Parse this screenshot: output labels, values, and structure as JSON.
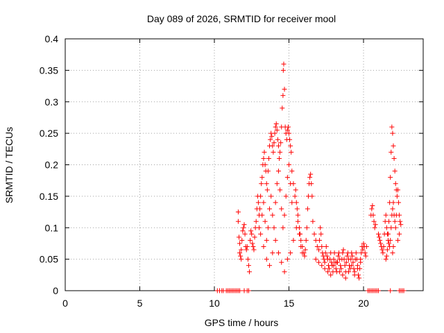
{
  "chart_data": {
    "type": "scatter",
    "title": "Day 089 of 2026, SRMTID for receiver mool",
    "xlabel": "GPS time / hours",
    "ylabel": "SRMTID / TECUs",
    "xlim": [
      0,
      24
    ],
    "ylim": [
      0,
      0.4
    ],
    "xticks": [
      0,
      5,
      10,
      15,
      20
    ],
    "yticks": [
      0,
      0.05,
      0.1,
      0.15,
      0.2,
      0.25,
      0.3,
      0.35,
      0.4
    ],
    "xtick_labels": [
      "0",
      "5",
      "10",
      "15",
      "20"
    ],
    "ytick_labels": [
      "0",
      "0.05",
      "0.1",
      "0.15",
      "0.2",
      "0.25",
      "0.3",
      "0.35",
      "0.4"
    ],
    "grid": true,
    "marker": "+",
    "color": "#ff0000",
    "series": [
      {
        "name": "SRMTID",
        "points": [
          [
            10.2,
            0.0
          ],
          [
            10.35,
            0.0
          ],
          [
            10.5,
            0.0
          ],
          [
            10.6,
            0.0
          ],
          [
            10.8,
            0.0
          ],
          [
            10.9,
            0.0
          ],
          [
            11.0,
            0.0
          ],
          [
            11.1,
            0.0
          ],
          [
            11.2,
            0.0
          ],
          [
            11.3,
            0.0
          ],
          [
            11.4,
            0.0
          ],
          [
            11.5,
            0.0
          ],
          [
            11.6,
            0.0
          ],
          [
            11.7,
            0.0
          ],
          [
            12.0,
            0.0
          ],
          [
            12.2,
            0.0
          ],
          [
            12.3,
            0.0
          ],
          [
            11.6,
            0.125
          ],
          [
            11.6,
            0.11
          ],
          [
            11.65,
            0.085
          ],
          [
            11.7,
            0.075
          ],
          [
            11.7,
            0.06
          ],
          [
            11.75,
            0.055
          ],
          [
            11.8,
            0.05
          ],
          [
            11.8,
            0.065
          ],
          [
            11.85,
            0.08
          ],
          [
            11.9,
            0.095
          ],
          [
            11.95,
            0.1
          ],
          [
            12.0,
            0.105
          ],
          [
            12.05,
            0.09
          ],
          [
            12.1,
            0.07
          ],
          [
            12.15,
            0.065
          ],
          [
            12.2,
            0.07
          ],
          [
            12.25,
            0.05
          ],
          [
            12.3,
            0.04
          ],
          [
            12.35,
            0.03
          ],
          [
            12.4,
            0.08
          ],
          [
            12.45,
            0.095
          ],
          [
            12.5,
            0.09
          ],
          [
            12.55,
            0.075
          ],
          [
            12.6,
            0.07
          ],
          [
            12.65,
            0.065
          ],
          [
            12.7,
            0.085
          ],
          [
            12.75,
            0.1
          ],
          [
            12.8,
            0.11
          ],
          [
            12.85,
            0.13
          ],
          [
            12.9,
            0.15
          ],
          [
            12.95,
            0.14
          ],
          [
            13.0,
            0.12
          ],
          [
            13.05,
            0.13
          ],
          [
            13.1,
            0.15
          ],
          [
            13.15,
            0.17
          ],
          [
            13.2,
            0.18
          ],
          [
            13.25,
            0.2
          ],
          [
            13.3,
            0.21
          ],
          [
            13.35,
            0.22
          ],
          [
            13.4,
            0.2
          ],
          [
            13.45,
            0.19
          ],
          [
            13.5,
            0.17
          ],
          [
            13.55,
            0.16
          ],
          [
            13.6,
            0.19
          ],
          [
            13.65,
            0.21
          ],
          [
            13.7,
            0.23
          ],
          [
            13.75,
            0.24
          ],
          [
            13.8,
            0.25
          ],
          [
            13.85,
            0.245
          ],
          [
            13.9,
            0.23
          ],
          [
            13.95,
            0.22
          ],
          [
            14.0,
            0.235
          ],
          [
            14.05,
            0.25
          ],
          [
            14.1,
            0.26
          ],
          [
            14.15,
            0.265
          ],
          [
            14.2,
            0.255
          ],
          [
            14.25,
            0.24
          ],
          [
            14.3,
            0.23
          ],
          [
            14.35,
            0.21
          ],
          [
            14.4,
            0.22
          ],
          [
            14.45,
            0.235
          ],
          [
            14.5,
            0.26
          ],
          [
            14.55,
            0.29
          ],
          [
            14.6,
            0.31
          ],
          [
            14.62,
            0.35
          ],
          [
            14.65,
            0.36
          ],
          [
            14.7,
            0.32
          ],
          [
            14.75,
            0.26
          ],
          [
            14.8,
            0.25
          ],
          [
            14.85,
            0.24
          ],
          [
            14.9,
            0.255
          ],
          [
            14.95,
            0.26
          ],
          [
            15.0,
            0.25
          ],
          [
            15.05,
            0.24
          ],
          [
            15.1,
            0.23
          ],
          [
            15.15,
            0.22
          ],
          [
            13.0,
            0.1
          ],
          [
            13.1,
            0.09
          ],
          [
            13.2,
            0.12
          ],
          [
            13.3,
            0.14
          ],
          [
            13.4,
            0.11
          ],
          [
            13.5,
            0.08
          ],
          [
            13.6,
            0.1
          ],
          [
            13.7,
            0.13
          ],
          [
            13.8,
            0.15
          ],
          [
            13.9,
            0.12
          ],
          [
            14.0,
            0.1
          ],
          [
            14.1,
            0.14
          ],
          [
            14.2,
            0.17
          ],
          [
            14.3,
            0.19
          ],
          [
            14.4,
            0.16
          ],
          [
            14.5,
            0.13
          ],
          [
            14.6,
            0.1
          ],
          [
            14.7,
            0.12
          ],
          [
            14.8,
            0.15
          ],
          [
            14.9,
            0.18
          ],
          [
            15.0,
            0.2
          ],
          [
            15.1,
            0.17
          ],
          [
            15.2,
            0.14
          ],
          [
            13.3,
            0.07
          ],
          [
            13.5,
            0.05
          ],
          [
            13.7,
            0.04
          ],
          [
            13.9,
            0.06
          ],
          [
            14.1,
            0.08
          ],
          [
            14.3,
            0.06
          ],
          [
            14.5,
            0.045
          ],
          [
            14.7,
            0.03
          ],
          [
            14.9,
            0.05
          ],
          [
            15.1,
            0.06
          ],
          [
            15.3,
            0.08
          ],
          [
            15.5,
            0.1
          ],
          [
            15.6,
            0.12
          ],
          [
            15.7,
            0.09
          ],
          [
            15.8,
            0.07
          ],
          [
            15.9,
            0.06
          ],
          [
            15.2,
            0.19
          ],
          [
            15.3,
            0.17
          ],
          [
            15.4,
            0.15
          ],
          [
            15.45,
            0.16
          ],
          [
            15.5,
            0.14
          ],
          [
            15.55,
            0.13
          ],
          [
            15.6,
            0.11
          ],
          [
            15.7,
            0.1
          ],
          [
            15.75,
            0.09
          ],
          [
            15.8,
            0.08
          ],
          [
            15.9,
            0.07
          ],
          [
            16.0,
            0.06
          ],
          [
            16.05,
            0.055
          ],
          [
            16.1,
            0.065
          ],
          [
            16.15,
            0.08
          ],
          [
            16.2,
            0.1
          ],
          [
            16.25,
            0.13
          ],
          [
            16.3,
            0.15
          ],
          [
            16.35,
            0.17
          ],
          [
            16.4,
            0.18
          ],
          [
            16.45,
            0.185
          ],
          [
            16.5,
            0.17
          ],
          [
            16.55,
            0.15
          ],
          [
            16.6,
            0.11
          ],
          [
            16.7,
            0.09
          ],
          [
            16.8,
            0.08
          ],
          [
            16.9,
            0.07
          ],
          [
            17.0,
            0.065
          ],
          [
            17.05,
            0.08
          ],
          [
            17.1,
            0.1
          ],
          [
            17.15,
            0.09
          ],
          [
            17.2,
            0.07
          ],
          [
            17.25,
            0.06
          ],
          [
            17.3,
            0.055
          ],
          [
            17.35,
            0.05
          ],
          [
            17.4,
            0.045
          ],
          [
            17.45,
            0.06
          ],
          [
            17.5,
            0.07
          ],
          [
            17.55,
            0.055
          ],
          [
            17.6,
            0.05
          ],
          [
            17.65,
            0.04
          ],
          [
            17.7,
            0.035
          ],
          [
            17.75,
            0.05
          ],
          [
            17.8,
            0.06
          ],
          [
            17.85,
            0.045
          ],
          [
            17.9,
            0.04
          ],
          [
            17.95,
            0.03
          ],
          [
            18.0,
            0.05
          ],
          [
            18.05,
            0.06
          ],
          [
            18.1,
            0.045
          ],
          [
            18.15,
            0.035
          ],
          [
            18.2,
            0.03
          ],
          [
            18.25,
            0.045
          ],
          [
            18.3,
            0.055
          ],
          [
            18.35,
            0.06
          ],
          [
            18.4,
            0.05
          ],
          [
            18.45,
            0.04
          ],
          [
            18.5,
            0.035
          ],
          [
            18.55,
            0.05
          ],
          [
            18.6,
            0.06
          ],
          [
            18.65,
            0.065
          ],
          [
            18.7,
            0.05
          ],
          [
            18.75,
            0.04
          ],
          [
            18.8,
            0.03
          ],
          [
            18.85,
            0.045
          ],
          [
            18.9,
            0.055
          ],
          [
            18.95,
            0.06
          ],
          [
            19.0,
            0.05
          ],
          [
            19.05,
            0.04
          ],
          [
            19.1,
            0.035
          ],
          [
            19.15,
            0.05
          ],
          [
            19.2,
            0.06
          ],
          [
            19.25,
            0.055
          ],
          [
            19.3,
            0.045
          ],
          [
            19.35,
            0.035
          ],
          [
            19.4,
            0.03
          ],
          [
            19.45,
            0.05
          ],
          [
            19.5,
            0.06
          ],
          [
            19.55,
            0.05
          ],
          [
            19.6,
            0.04
          ],
          [
            19.65,
            0.025
          ],
          [
            19.7,
            0.02
          ],
          [
            19.75,
            0.035
          ],
          [
            19.8,
            0.05
          ],
          [
            19.85,
            0.06
          ],
          [
            19.9,
            0.07
          ],
          [
            19.95,
            0.065
          ],
          [
            20.0,
            0.075
          ],
          [
            20.05,
            0.07
          ],
          [
            20.1,
            0.06
          ],
          [
            20.15,
            0.055
          ],
          [
            20.2,
            0.07
          ],
          [
            16.8,
            0.05
          ],
          [
            17.0,
            0.045
          ],
          [
            17.2,
            0.04
          ],
          [
            17.4,
            0.035
          ],
          [
            17.6,
            0.03
          ],
          [
            17.8,
            0.025
          ],
          [
            18.0,
            0.04
          ],
          [
            18.2,
            0.045
          ],
          [
            18.4,
            0.03
          ],
          [
            18.6,
            0.025
          ],
          [
            18.8,
            0.02
          ],
          [
            19.0,
            0.03
          ],
          [
            19.2,
            0.04
          ],
          [
            19.4,
            0.025
          ],
          [
            19.6,
            0.035
          ],
          [
            19.8,
            0.045
          ],
          [
            20.3,
            0.0
          ],
          [
            20.4,
            0.0
          ],
          [
            20.5,
            0.0
          ],
          [
            20.6,
            0.0
          ],
          [
            20.7,
            0.0
          ],
          [
            20.8,
            0.0
          ],
          [
            20.9,
            0.0
          ],
          [
            21.0,
            0.0
          ],
          [
            21.8,
            0.0
          ],
          [
            22.4,
            0.0
          ],
          [
            22.5,
            0.0
          ],
          [
            22.6,
            0.0
          ],
          [
            22.7,
            0.0
          ],
          [
            20.5,
            0.12
          ],
          [
            20.55,
            0.13
          ],
          [
            20.6,
            0.135
          ],
          [
            20.65,
            0.12
          ],
          [
            20.7,
            0.11
          ],
          [
            20.75,
            0.1
          ],
          [
            20.8,
            0.105
          ],
          [
            21.0,
            0.09
          ],
          [
            21.05,
            0.085
          ],
          [
            21.1,
            0.08
          ],
          [
            21.15,
            0.075
          ],
          [
            21.2,
            0.07
          ],
          [
            21.25,
            0.065
          ],
          [
            21.3,
            0.06
          ],
          [
            21.35,
            0.07
          ],
          [
            21.4,
            0.09
          ],
          [
            21.45,
            0.11
          ],
          [
            21.5,
            0.12
          ],
          [
            21.55,
            0.1
          ],
          [
            21.6,
            0.09
          ],
          [
            21.65,
            0.08
          ],
          [
            21.7,
            0.075
          ],
          [
            21.75,
            0.07
          ],
          [
            21.8,
            0.08
          ],
          [
            21.85,
            0.1
          ],
          [
            21.9,
            0.12
          ],
          [
            21.95,
            0.13
          ],
          [
            22.0,
            0.14
          ],
          [
            22.05,
            0.12
          ],
          [
            22.1,
            0.11
          ],
          [
            22.15,
            0.1
          ],
          [
            22.2,
            0.12
          ],
          [
            22.25,
            0.15
          ],
          [
            22.3,
            0.16
          ],
          [
            22.35,
            0.14
          ],
          [
            22.4,
            0.12
          ],
          [
            22.45,
            0.11
          ],
          [
            22.5,
            0.105
          ],
          [
            21.9,
            0.26
          ],
          [
            21.95,
            0.25
          ],
          [
            22.0,
            0.23
          ],
          [
            22.05,
            0.21
          ],
          [
            22.1,
            0.19
          ],
          [
            22.15,
            0.17
          ],
          [
            22.2,
            0.16
          ],
          [
            21.85,
            0.22
          ],
          [
            21.8,
            0.18
          ],
          [
            21.75,
            0.14
          ],
          [
            21.7,
            0.11
          ],
          [
            21.65,
            0.09
          ],
          [
            21.6,
            0.065
          ],
          [
            21.55,
            0.055
          ],
          [
            21.5,
            0.05
          ],
          [
            21.95,
            0.06
          ],
          [
            22.0,
            0.07
          ],
          [
            22.3,
            0.08
          ],
          [
            22.4,
            0.09
          ]
        ]
      }
    ]
  }
}
